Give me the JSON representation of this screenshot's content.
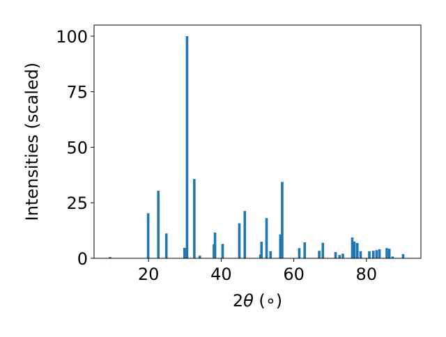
{
  "chart_data": {
    "type": "bar",
    "title": "",
    "xlabel": "2θ (∘)",
    "ylabel": "Intensities (scaled)",
    "xlim": [
      5,
      95
    ],
    "ylim": [
      0,
      105
    ],
    "xticks": [
      20,
      40,
      60,
      80
    ],
    "yticks": [
      0,
      25,
      50,
      75,
      100
    ],
    "grid": false,
    "bar_color": "#1f77b4",
    "bar_width": 0.7,
    "x": [
      9.4,
      19.9,
      22.7,
      24.9,
      29.9,
      30.6,
      32.6,
      34.1,
      38.0,
      38.3,
      40.4,
      45.0,
      46.5,
      50.8,
      51.1,
      52.5,
      53.6,
      56.3,
      56.8,
      61.5,
      63.0,
      67.0,
      68.0,
      71.5,
      72.6,
      73.5,
      76.1,
      76.7,
      77.5,
      78.4,
      80.8,
      81.9,
      82.8,
      83.6,
      85.6,
      86.3,
      87.2,
      90.1
    ],
    "values": [
      0.6,
      20.3,
      30.4,
      11.2,
      4.7,
      100.0,
      35.7,
      1.2,
      6.3,
      11.6,
      6.5,
      15.8,
      21.3,
      1.7,
      7.5,
      18.1,
      3.2,
      10.8,
      34.4,
      4.6,
      7.2,
      3.4,
      7.0,
      2.8,
      1.5,
      2.1,
      9.4,
      7.5,
      6.9,
      3.2,
      3.2,
      3.4,
      3.7,
      4.1,
      4.6,
      4.3,
      0.8,
      1.9
    ]
  }
}
